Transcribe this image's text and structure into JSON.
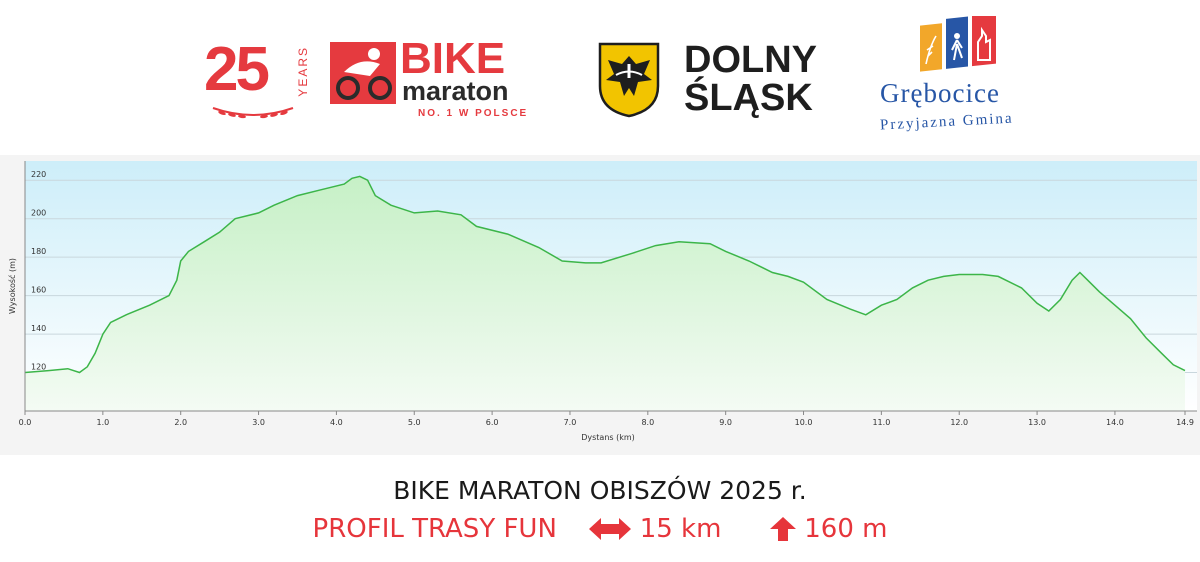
{
  "logos": {
    "years_logo": {
      "number": "25",
      "word": "YEARS"
    },
    "bike_logo": {
      "word1": "BIKE",
      "word2": "maraton",
      "tagline": "NO. 1 W POLSCE"
    },
    "region_logo": {
      "line1": "DOLNY",
      "line2": "ŚLĄSK"
    },
    "municipality_logo": {
      "name": "Grębocice",
      "tagline": "Przyjazna Gmina"
    }
  },
  "colors": {
    "brand_red": "#e53a3f",
    "dark": "#2b2b2b",
    "profile_line": "#3cb549",
    "fill_top": "#c6f0c6",
    "plot_bg_top": "#cdeef9",
    "municipality_blue": "#2756a6"
  },
  "chart_data": {
    "type": "area",
    "title": "",
    "xlabel": "Dystans  (km)",
    "ylabel": "Wysokość (m)",
    "xlim": [
      0,
      14.9
    ],
    "ylim": [
      100,
      230
    ],
    "x_ticks": [
      "0.0",
      "1.0",
      "2.0",
      "3.0",
      "4.0",
      "5.0",
      "6.0",
      "7.0",
      "8.0",
      "9.0",
      "10.0",
      "11.0",
      "12.0",
      "13.0",
      "14.0",
      "14.9"
    ],
    "x_tick_values": [
      0,
      1,
      2,
      3,
      4,
      5,
      6,
      7,
      8,
      9,
      10,
      11,
      12,
      13,
      14,
      14.9
    ],
    "y_ticks": [
      "120",
      "140",
      "160",
      "180",
      "200",
      "220"
    ],
    "y_tick_values": [
      120,
      140,
      160,
      180,
      200,
      220
    ],
    "grid": true,
    "series": [
      {
        "name": "",
        "x": [
          0,
          0.3,
          0.55,
          0.7,
          0.8,
          0.9,
          0.95,
          1.0,
          1.1,
          1.3,
          1.6,
          1.85,
          1.95,
          2.0,
          2.1,
          2.3,
          2.5,
          2.7,
          3.0,
          3.2,
          3.5,
          3.8,
          4.1,
          4.2,
          4.3,
          4.4,
          4.5,
          4.7,
          5.0,
          5.3,
          5.6,
          5.8,
          6.2,
          6.6,
          6.9,
          7.2,
          7.4,
          7.8,
          8.1,
          8.4,
          8.8,
          9.0,
          9.3,
          9.6,
          9.8,
          10.0,
          10.3,
          10.6,
          10.8,
          11.0,
          11.2,
          11.4,
          11.6,
          11.8,
          12.0,
          12.3,
          12.5,
          12.8,
          13.0,
          13.15,
          13.3,
          13.45,
          13.55,
          13.65,
          13.8,
          14.0,
          14.2,
          14.4,
          14.6,
          14.75,
          14.9
        ],
        "y": [
          120,
          121,
          122,
          120,
          123,
          130,
          135,
          140,
          146,
          150,
          155,
          160,
          168,
          178,
          183,
          188,
          193,
          200,
          203,
          207,
          212,
          215,
          218,
          221,
          222,
          220,
          212,
          207,
          203,
          204,
          202,
          196,
          192,
          185,
          178,
          177,
          177,
          182,
          186,
          188,
          187,
          183,
          178,
          172,
          170,
          167,
          158,
          153,
          150,
          155,
          158,
          164,
          168,
          170,
          171,
          171,
          170,
          164,
          156,
          152,
          158,
          168,
          172,
          168,
          162,
          155,
          148,
          138,
          130,
          124,
          121
        ]
      }
    ]
  },
  "footer": {
    "title": "BIKE MARATON OBISZÓW 2025 r.",
    "profile_label": "PROFIL TRASY FUN",
    "distance": "15 km",
    "elevation": "160 m"
  }
}
